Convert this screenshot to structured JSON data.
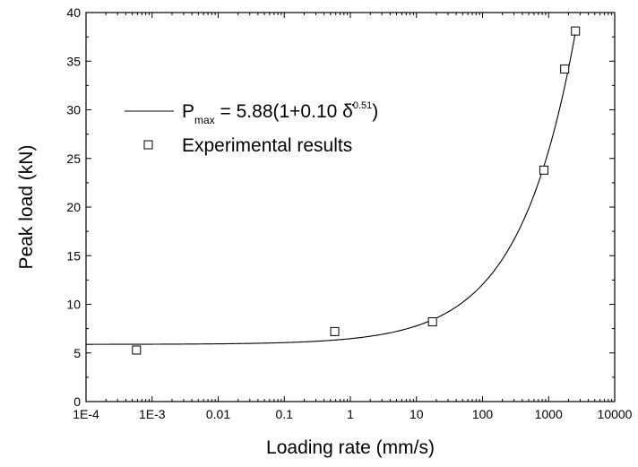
{
  "chart_data": {
    "type": "scatter",
    "x_scale": "log",
    "xlabel": "Loading rate (mm/s)",
    "ylabel": "Peak load (kN)",
    "xlim": [
      0.0001,
      10000
    ],
    "ylim": [
      0,
      40
    ],
    "x_ticks": [
      0.0001,
      0.001,
      0.01,
      0.1,
      1,
      10,
      100,
      1000,
      10000
    ],
    "x_tick_labels": [
      "1E-4",
      "1E-3",
      "0.01",
      "0.1",
      "1",
      "10",
      "100",
      "1000",
      "10000"
    ],
    "y_ticks": [
      0,
      5,
      10,
      15,
      20,
      25,
      30,
      35,
      40
    ],
    "y_tick_labels": [
      "0",
      "5",
      "10",
      "15",
      "20",
      "25",
      "30",
      "35",
      "40"
    ],
    "grid": false,
    "legend_position": "upper-left",
    "series": [
      {
        "name": "Experimental results",
        "kind": "scatter",
        "marker": "open-square",
        "x": [
          0.00058,
          0.58,
          17.5,
          850,
          1750,
          2550
        ],
        "y": [
          5.3,
          7.2,
          8.2,
          23.8,
          34.2,
          38.1
        ]
      },
      {
        "kind": "line",
        "legend": {
          "base": "P",
          "subscript": "max",
          "equation": " = 5.88(1+0.10 ",
          "rate_symbol": "δ̇",
          "exponent": "0.51",
          "closing": ")"
        },
        "function": {
          "form": "a*(1+b*x^c)",
          "a": 5.88,
          "b": 0.1,
          "c": 0.51,
          "x_range": [
            0.0001,
            2600
          ]
        }
      }
    ]
  }
}
